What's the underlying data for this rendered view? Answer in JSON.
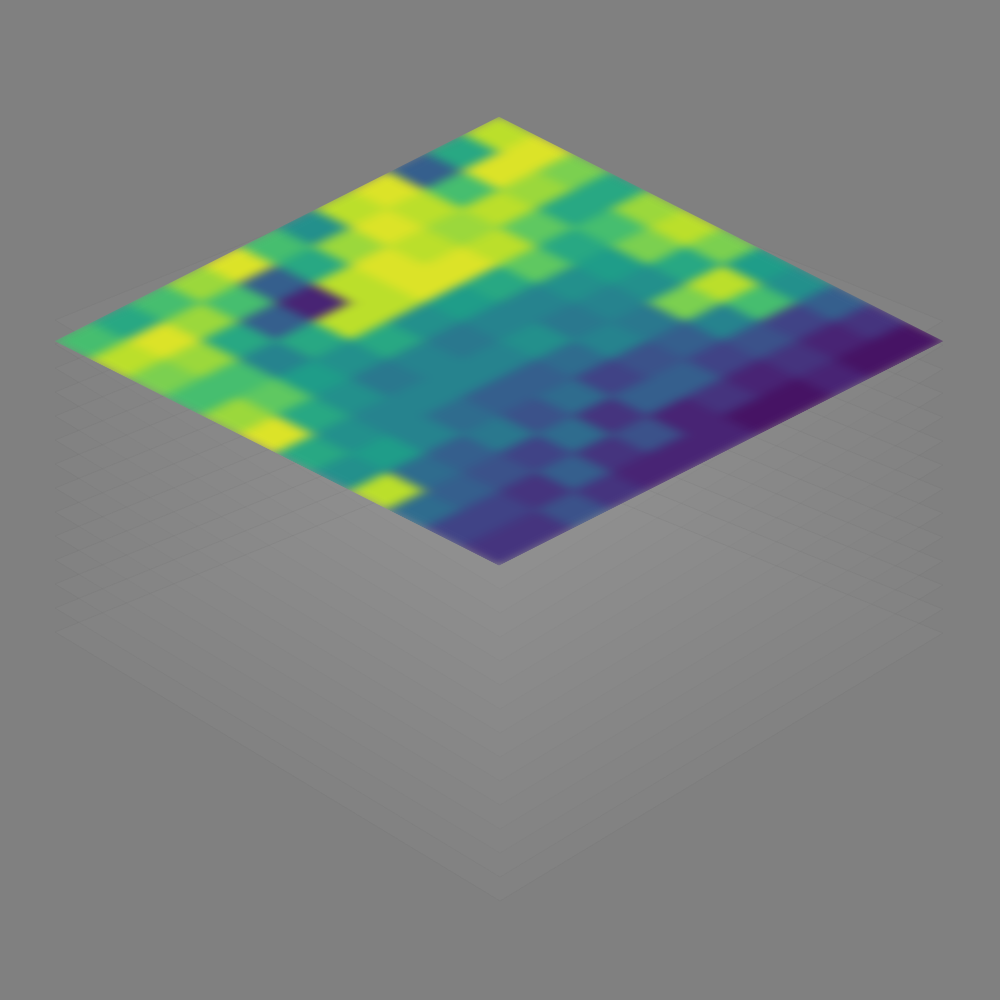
{
  "chart_data": {
    "type": "heatmap",
    "cells": [
      [
        0.9,
        0.95,
        0.8,
        0.6,
        0.85,
        0.9,
        0.8,
        0.55,
        0.5,
        0.3,
        0.15,
        0.05
      ],
      [
        0.6,
        0.95,
        0.85,
        0.6,
        0.7,
        0.8,
        0.6,
        0.9,
        0.7,
        0.2,
        0.1,
        0.05
      ],
      [
        0.3,
        0.7,
        0.9,
        0.75,
        0.6,
        0.55,
        0.5,
        0.8,
        0.45,
        0.25,
        0.15,
        0.1
      ],
      [
        0.95,
        0.9,
        0.85,
        0.9,
        0.75,
        0.5,
        0.45,
        0.4,
        0.3,
        0.2,
        0.1,
        0.05
      ],
      [
        0.9,
        0.95,
        0.9,
        0.95,
        0.6,
        0.45,
        0.4,
        0.45,
        0.25,
        0.3,
        0.15,
        0.05
      ],
      [
        0.5,
        0.85,
        0.95,
        0.95,
        0.55,
        0.45,
        0.5,
        0.35,
        0.2,
        0.3,
        0.1,
        0.1
      ],
      [
        0.7,
        0.6,
        0.9,
        0.9,
        0.5,
        0.4,
        0.45,
        0.3,
        0.35,
        0.15,
        0.25,
        0.1
      ],
      [
        0.95,
        0.3,
        0.1,
        0.9,
        0.6,
        0.45,
        0.45,
        0.3,
        0.25,
        0.35,
        0.15,
        0.1
      ],
      [
        0.85,
        0.7,
        0.3,
        0.6,
        0.5,
        0.4,
        0.45,
        0.35,
        0.4,
        0.2,
        0.3,
        0.15
      ],
      [
        0.7,
        0.85,
        0.6,
        0.45,
        0.55,
        0.5,
        0.45,
        0.45,
        0.3,
        0.25,
        0.15,
        0.25
      ],
      [
        0.6,
        0.95,
        0.85,
        0.7,
        0.75,
        0.6,
        0.5,
        0.55,
        0.35,
        0.3,
        0.2,
        0.15
      ],
      [
        0.7,
        0.9,
        0.8,
        0.7,
        0.85,
        0.95,
        0.6,
        0.5,
        0.9,
        0.35,
        0.2,
        0.15
      ]
    ],
    "color_range": [
      0,
      1
    ],
    "tick_labels": false,
    "grid": false
  }
}
